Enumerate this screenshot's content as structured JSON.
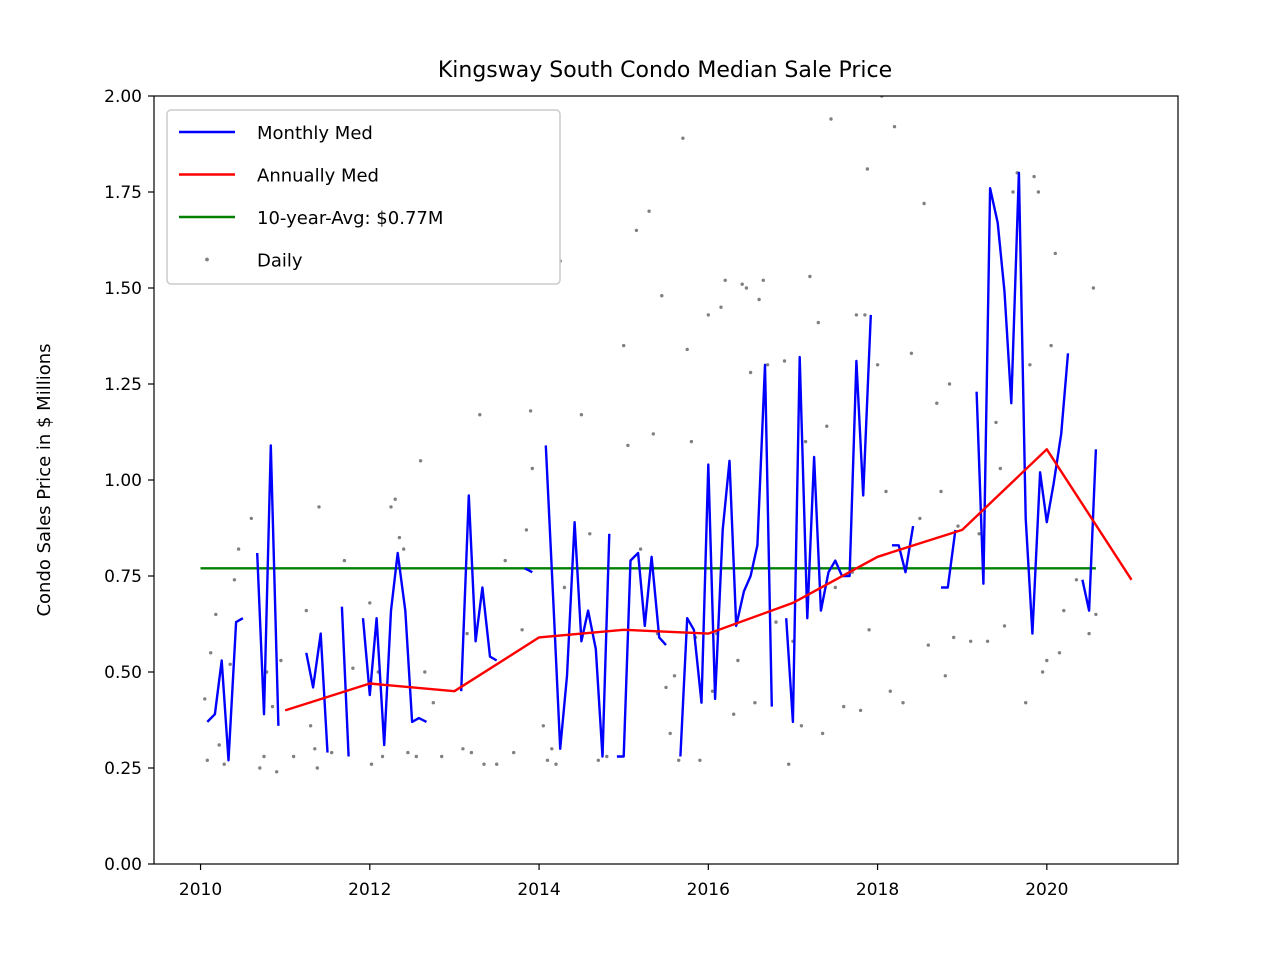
{
  "chart_data": {
    "type": "line",
    "title": "Kingsway South Condo Median Sale Price",
    "xlabel": "",
    "ylabel": "Condo Sales Price in $ Millions",
    "xlim": [
      2009.45,
      2021.55
    ],
    "ylim": [
      0,
      2
    ],
    "xticks": [
      2010,
      2012,
      2014,
      2016,
      2018,
      2020
    ],
    "xtick_labels": [
      "2010",
      "2012",
      "2014",
      "2016",
      "2018",
      "2020"
    ],
    "yticks": [
      0,
      0.25,
      0.5,
      0.75,
      1.0,
      1.25,
      1.5,
      1.75,
      2.0
    ],
    "ytick_labels": [
      "0.00",
      "0.25",
      "0.50",
      "0.75",
      "1.00",
      "1.25",
      "1.50",
      "1.75",
      "2.00"
    ],
    "grid": false,
    "legend": {
      "placement": "top-left",
      "entries": [
        "Monthly Med",
        "Annually Med",
        "10-year-Avg: $0.77M",
        "Daily"
      ]
    },
    "series": [
      {
        "name": "Monthly Med",
        "kind": "line",
        "color": "#0000ff",
        "segments": [
          [
            [
              2010.08,
              0.37
            ],
            [
              2010.17,
              0.39
            ],
            [
              2010.25,
              0.53
            ],
            [
              2010.33,
              0.27
            ],
            [
              2010.42,
              0.63
            ],
            [
              2010.5,
              0.64
            ]
          ],
          [
            [
              2010.67,
              0.81
            ],
            [
              2010.75,
              0.39
            ],
            [
              2010.83,
              1.09
            ],
            [
              2010.92,
              0.36
            ]
          ],
          [
            [
              2011.25,
              0.55
            ],
            [
              2011.33,
              0.46
            ],
            [
              2011.42,
              0.6
            ],
            [
              2011.5,
              0.29
            ]
          ],
          [
            [
              2011.67,
              0.67
            ],
            [
              2011.75,
              0.28
            ]
          ],
          [
            [
              2011.92,
              0.64
            ],
            [
              2012.0,
              0.44
            ],
            [
              2012.08,
              0.64
            ],
            [
              2012.17,
              0.31
            ],
            [
              2012.25,
              0.66
            ],
            [
              2012.33,
              0.81
            ],
            [
              2012.42,
              0.66
            ],
            [
              2012.5,
              0.37
            ],
            [
              2012.58,
              0.38
            ],
            [
              2012.67,
              0.37
            ]
          ],
          [
            [
              2013.08,
              0.45
            ],
            [
              2013.17,
              0.96
            ],
            [
              2013.25,
              0.58
            ],
            [
              2013.33,
              0.72
            ],
            [
              2013.42,
              0.54
            ],
            [
              2013.5,
              0.53
            ]
          ],
          [
            [
              2013.83,
              0.77
            ],
            [
              2013.92,
              0.76
            ]
          ],
          [
            [
              2014.08,
              1.09
            ],
            [
              2014.17,
              0.68
            ],
            [
              2014.25,
              0.3
            ],
            [
              2014.33,
              0.49
            ],
            [
              2014.42,
              0.89
            ],
            [
              2014.5,
              0.58
            ],
            [
              2014.58,
              0.66
            ],
            [
              2014.67,
              0.56
            ],
            [
              2014.75,
              0.28
            ],
            [
              2014.83,
              0.86
            ]
          ],
          [
            [
              2014.92,
              0.28
            ],
            [
              2015.0,
              0.28
            ],
            [
              2015.08,
              0.79
            ],
            [
              2015.17,
              0.81
            ],
            [
              2015.25,
              0.62
            ],
            [
              2015.33,
              0.8
            ],
            [
              2015.42,
              0.59
            ],
            [
              2015.5,
              0.57
            ]
          ],
          [
            [
              2015.67,
              0.28
            ],
            [
              2015.75,
              0.64
            ],
            [
              2015.83,
              0.61
            ],
            [
              2015.92,
              0.42
            ],
            [
              2016.0,
              1.04
            ],
            [
              2016.08,
              0.43
            ],
            [
              2016.17,
              0.87
            ],
            [
              2016.25,
              1.05
            ],
            [
              2016.33,
              0.62
            ],
            [
              2016.42,
              0.71
            ],
            [
              2016.5,
              0.75
            ],
            [
              2016.58,
              0.83
            ],
            [
              2016.67,
              1.3
            ],
            [
              2016.75,
              0.41
            ]
          ],
          [
            [
              2016.92,
              0.64
            ],
            [
              2017.0,
              0.37
            ],
            [
              2017.08,
              1.32
            ],
            [
              2017.17,
              0.64
            ],
            [
              2017.25,
              1.06
            ],
            [
              2017.33,
              0.66
            ],
            [
              2017.42,
              0.76
            ],
            [
              2017.5,
              0.79
            ],
            [
              2017.58,
              0.75
            ],
            [
              2017.67,
              0.75
            ],
            [
              2017.75,
              1.31
            ],
            [
              2017.83,
              0.96
            ],
            [
              2017.92,
              1.43
            ]
          ],
          [
            [
              2018.17,
              0.83
            ],
            [
              2018.25,
              0.83
            ],
            [
              2018.33,
              0.76
            ],
            [
              2018.42,
              0.88
            ]
          ],
          [
            [
              2018.75,
              0.72
            ],
            [
              2018.83,
              0.72
            ],
            [
              2018.92,
              0.87
            ]
          ],
          [
            [
              2019.17,
              1.23
            ],
            [
              2019.25,
              0.73
            ],
            [
              2019.33,
              1.76
            ],
            [
              2019.42,
              1.67
            ],
            [
              2019.5,
              1.49
            ],
            [
              2019.58,
              1.2
            ],
            [
              2019.67,
              1.8
            ],
            [
              2019.75,
              0.9
            ],
            [
              2019.83,
              0.6
            ],
            [
              2019.92,
              1.02
            ],
            [
              2020.0,
              0.89
            ],
            [
              2020.08,
              0.99
            ],
            [
              2020.17,
              1.12
            ],
            [
              2020.25,
              1.33
            ]
          ],
          [
            [
              2020.42,
              0.74
            ],
            [
              2020.5,
              0.66
            ],
            [
              2020.58,
              1.08
            ]
          ]
        ]
      },
      {
        "name": "Annually Med",
        "kind": "line",
        "color": "#ff0000",
        "points": [
          [
            2011,
            0.4
          ],
          [
            2012,
            0.47
          ],
          [
            2013,
            0.45
          ],
          [
            2014,
            0.59
          ],
          [
            2015,
            0.61
          ],
          [
            2016,
            0.6
          ],
          [
            2017,
            0.68
          ],
          [
            2018,
            0.8
          ],
          [
            2019,
            0.87
          ],
          [
            2020,
            1.08
          ],
          [
            2021,
            0.74
          ]
        ]
      },
      {
        "name": "10-year-Avg: $0.77M",
        "kind": "line",
        "color": "#008000",
        "points": [
          [
            2010,
            0.77
          ],
          [
            2020.58,
            0.77
          ]
        ]
      },
      {
        "name": "Daily",
        "kind": "scatter",
        "color": "#808080",
        "points": [
          [
            2010.05,
            0.43
          ],
          [
            2010.08,
            0.27
          ],
          [
            2010.12,
            0.55
          ],
          [
            2010.18,
            0.65
          ],
          [
            2010.22,
            0.31
          ],
          [
            2010.28,
            0.26
          ],
          [
            2010.35,
            0.52
          ],
          [
            2010.4,
            0.74
          ],
          [
            2010.45,
            0.82
          ],
          [
            2010.6,
            0.9
          ],
          [
            2010.7,
            0.25
          ],
          [
            2010.75,
            0.28
          ],
          [
            2010.85,
            0.41
          ],
          [
            2010.9,
            0.24
          ],
          [
            2010.95,
            0.53
          ],
          [
            2010.78,
            0.5
          ],
          [
            2011.1,
            0.28
          ],
          [
            2011.25,
            0.66
          ],
          [
            2011.3,
            0.36
          ],
          [
            2011.35,
            0.3
          ],
          [
            2011.38,
            0.25
          ],
          [
            2011.4,
            0.93
          ],
          [
            2011.55,
            0.29
          ],
          [
            2011.7,
            0.79
          ],
          [
            2011.8,
            0.51
          ],
          [
            2012.0,
            0.68
          ],
          [
            2012.02,
            0.26
          ],
          [
            2012.1,
            0.5
          ],
          [
            2012.15,
            0.28
          ],
          [
            2012.25,
            0.93
          ],
          [
            2012.3,
            0.95
          ],
          [
            2012.35,
            0.85
          ],
          [
            2012.4,
            0.82
          ],
          [
            2012.45,
            0.29
          ],
          [
            2012.55,
            0.28
          ],
          [
            2012.6,
            1.05
          ],
          [
            2012.65,
            0.5
          ],
          [
            2012.75,
            0.42
          ],
          [
            2012.85,
            0.28
          ],
          [
            2013.1,
            0.3
          ],
          [
            2013.15,
            0.6
          ],
          [
            2013.2,
            0.29
          ],
          [
            2013.3,
            1.17
          ],
          [
            2013.35,
            0.26
          ],
          [
            2013.5,
            0.26
          ],
          [
            2013.6,
            0.79
          ],
          [
            2013.7,
            0.29
          ],
          [
            2013.8,
            0.61
          ],
          [
            2013.85,
            0.87
          ],
          [
            2013.9,
            1.18
          ],
          [
            2013.92,
            1.03
          ],
          [
            2014.0,
            1.8
          ],
          [
            2014.05,
            0.36
          ],
          [
            2014.1,
            0.27
          ],
          [
            2014.15,
            0.3
          ],
          [
            2014.2,
            0.26
          ],
          [
            2014.25,
            1.57
          ],
          [
            2014.3,
            0.72
          ],
          [
            2014.5,
            1.17
          ],
          [
            2014.6,
            0.86
          ],
          [
            2014.7,
            0.27
          ],
          [
            2014.8,
            0.28
          ],
          [
            2015.0,
            1.35
          ],
          [
            2015.05,
            1.09
          ],
          [
            2015.15,
            1.65
          ],
          [
            2015.2,
            0.82
          ],
          [
            2015.3,
            1.7
          ],
          [
            2015.35,
            1.12
          ],
          [
            2015.4,
            0.6
          ],
          [
            2015.45,
            1.48
          ],
          [
            2015.5,
            0.46
          ],
          [
            2015.55,
            0.34
          ],
          [
            2015.6,
            0.49
          ],
          [
            2015.65,
            0.27
          ],
          [
            2015.7,
            1.89
          ],
          [
            2015.75,
            1.34
          ],
          [
            2015.8,
            1.1
          ],
          [
            2015.85,
            0.59
          ],
          [
            2015.9,
            0.27
          ],
          [
            2016.0,
            1.43
          ],
          [
            2016.05,
            0.45
          ],
          [
            2016.1,
            0.6
          ],
          [
            2016.15,
            1.45
          ],
          [
            2016.2,
            1.52
          ],
          [
            2016.3,
            0.39
          ],
          [
            2016.35,
            0.53
          ],
          [
            2016.4,
            1.51
          ],
          [
            2016.45,
            1.5
          ],
          [
            2016.5,
            1.28
          ],
          [
            2016.55,
            0.42
          ],
          [
            2016.6,
            1.47
          ],
          [
            2016.65,
            1.52
          ],
          [
            2016.7,
            1.3
          ],
          [
            2016.8,
            0.63
          ],
          [
            2016.9,
            1.31
          ],
          [
            2016.95,
            0.26
          ],
          [
            2017.0,
            0.58
          ],
          [
            2017.1,
            0.36
          ],
          [
            2017.15,
            1.1
          ],
          [
            2017.2,
            1.53
          ],
          [
            2017.3,
            1.41
          ],
          [
            2017.35,
            0.34
          ],
          [
            2017.4,
            1.14
          ],
          [
            2017.45,
            1.94
          ],
          [
            2017.5,
            0.72
          ],
          [
            2017.6,
            0.41
          ],
          [
            2017.7,
            0.76
          ],
          [
            2017.75,
            1.43
          ],
          [
            2017.8,
            0.4
          ],
          [
            2017.85,
            1.43
          ],
          [
            2017.88,
            1.81
          ],
          [
            2017.9,
            0.61
          ],
          [
            2018.0,
            1.3
          ],
          [
            2018.05,
            2.0
          ],
          [
            2018.1,
            0.97
          ],
          [
            2018.15,
            0.45
          ],
          [
            2018.2,
            1.92
          ],
          [
            2018.3,
            0.42
          ],
          [
            2018.4,
            1.33
          ],
          [
            2018.5,
            0.9
          ],
          [
            2018.55,
            1.72
          ],
          [
            2018.6,
            0.57
          ],
          [
            2018.7,
            1.2
          ],
          [
            2018.75,
            0.97
          ],
          [
            2018.8,
            0.49
          ],
          [
            2018.85,
            1.25
          ],
          [
            2018.9,
            0.59
          ],
          [
            2018.95,
            0.88
          ],
          [
            2019.1,
            0.58
          ],
          [
            2019.2,
            0.86
          ],
          [
            2019.3,
            0.58
          ],
          [
            2019.4,
            1.15
          ],
          [
            2019.45,
            1.03
          ],
          [
            2019.5,
            0.62
          ],
          [
            2019.6,
            1.75
          ],
          [
            2019.65,
            1.8
          ],
          [
            2019.75,
            0.42
          ],
          [
            2019.8,
            1.3
          ],
          [
            2019.85,
            1.79
          ],
          [
            2019.9,
            1.75
          ],
          [
            2019.95,
            0.5
          ],
          [
            2020.0,
            0.53
          ],
          [
            2020.05,
            1.35
          ],
          [
            2020.1,
            1.59
          ],
          [
            2020.15,
            0.55
          ],
          [
            2020.2,
            0.66
          ],
          [
            2020.35,
            0.74
          ],
          [
            2020.5,
            0.6
          ],
          [
            2020.55,
            1.5
          ],
          [
            2020.58,
            0.65
          ]
        ]
      }
    ]
  }
}
